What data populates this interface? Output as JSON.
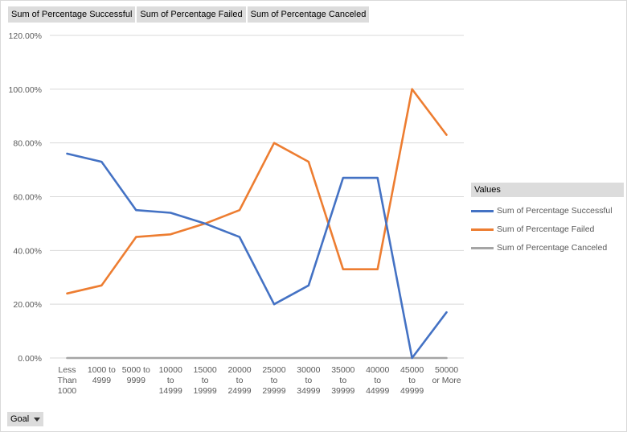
{
  "field_buttons": [
    "Sum of Percentage Successful",
    "Sum of Percentage Failed",
    "Sum of Percentage Canceled"
  ],
  "legend": {
    "title": "Values"
  },
  "filter": {
    "label": "Goal"
  },
  "chart_data": {
    "type": "line",
    "title": "",
    "xlabel": "",
    "ylabel": "",
    "ylim": [
      0,
      120
    ],
    "y_ticks": [
      "0.00%",
      "20.00%",
      "40.00%",
      "60.00%",
      "80.00%",
      "100.00%",
      "120.00%"
    ],
    "y_tick_values": [
      0,
      20,
      40,
      60,
      80,
      100,
      120
    ],
    "grid": true,
    "legend_position": "right",
    "categories": [
      [
        "Less",
        "Than",
        "1000"
      ],
      [
        "1000 to",
        "4999"
      ],
      [
        "5000 to",
        "9999"
      ],
      [
        "10000",
        "to",
        "14999"
      ],
      [
        "15000",
        "to",
        "19999"
      ],
      [
        "20000",
        "to",
        "24999"
      ],
      [
        "25000",
        "to",
        "29999"
      ],
      [
        "30000",
        "to",
        "34999"
      ],
      [
        "35000",
        "to",
        "39999"
      ],
      [
        "40000",
        "to",
        "44999"
      ],
      [
        "45000",
        "to",
        "49999"
      ],
      [
        "50000",
        "or More"
      ]
    ],
    "series": [
      {
        "name": "Sum of Percentage Successful",
        "color": "#4472c4",
        "values": [
          76,
          73,
          55,
          54,
          50,
          45,
          20,
          27,
          67,
          67,
          0,
          17
        ]
      },
      {
        "name": "Sum of Percentage Failed",
        "color": "#ed7d31",
        "values": [
          24,
          27,
          45,
          46,
          50,
          55,
          80,
          73,
          33,
          33,
          100,
          83
        ]
      },
      {
        "name": "Sum of Percentage Canceled",
        "color": "#a5a5a5",
        "values": [
          0,
          0,
          0,
          0,
          0,
          0,
          0,
          0,
          0,
          0,
          0,
          0
        ]
      }
    ]
  }
}
